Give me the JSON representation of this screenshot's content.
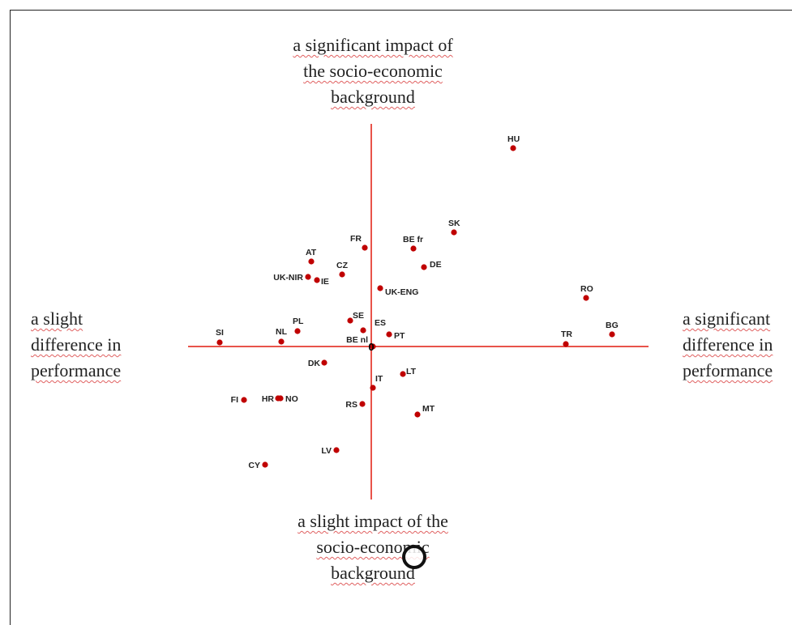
{
  "labels": {
    "top": "a significant impact of\nthe socio-economic\nbackground",
    "bottom": "a slight impact of the\nsocio-economic\nbackground",
    "left": "a slight\ndifference in\nperformance",
    "right": "a significant\ndifference in\nperformance"
  },
  "colors": {
    "axis": "#e8534a",
    "point": "#c00000",
    "text": "#222222"
  },
  "chart_data": {
    "type": "scatter",
    "title": "",
    "xlabel": "",
    "ylabel": "",
    "xlim": [
      -190,
      345
    ],
    "ylim": [
      -190,
      275
    ],
    "origin_label": "0",
    "grid": false,
    "points": [
      {
        "label": "HU",
        "x": 175,
        "y": 245
      },
      {
        "label": "SK",
        "x": 102,
        "y": 141
      },
      {
        "label": "BE fr",
        "x": 52,
        "y": 121
      },
      {
        "label": "FR",
        "x": -8,
        "y": 122
      },
      {
        "label": "DE",
        "x": 65,
        "y": 98
      },
      {
        "label": "AT",
        "x": -74,
        "y": 105
      },
      {
        "label": "CZ",
        "x": -36,
        "y": 89
      },
      {
        "label": "UK-NIR",
        "x": -78,
        "y": 86
      },
      {
        "label": "IE",
        "x": -67,
        "y": 82
      },
      {
        "label": "UK-ENG",
        "x": 11,
        "y": 72
      },
      {
        "label": "RO",
        "x": 265,
        "y": 60
      },
      {
        "label": "SE",
        "x": -26,
        "y": 32
      },
      {
        "label": "ES",
        "x": -10,
        "y": 20
      },
      {
        "label": "PL",
        "x": -91,
        "y": 19
      },
      {
        "label": "PT",
        "x": 22,
        "y": 15
      },
      {
        "label": "BE nl",
        "x": 2,
        "y": 0
      },
      {
        "label": "SI",
        "x": -187,
        "y": 5
      },
      {
        "label": "NL",
        "x": -111,
        "y": 6
      },
      {
        "label": "TR",
        "x": 240,
        "y": 3
      },
      {
        "label": "BG",
        "x": 297,
        "y": 15
      },
      {
        "label": "DK",
        "x": -58,
        "y": -20
      },
      {
        "label": "LT",
        "x": 39,
        "y": -34
      },
      {
        "label": "IT",
        "x": 2,
        "y": -51
      },
      {
        "label": "FI",
        "x": -157,
        "y": -66
      },
      {
        "label": "HR",
        "x": -115,
        "y": -64
      },
      {
        "label": "NO",
        "x": -112,
        "y": -64
      },
      {
        "label": "RS",
        "x": -11,
        "y": -71
      },
      {
        "label": "MT",
        "x": 57,
        "y": -84
      },
      {
        "label": "LV",
        "x": -43,
        "y": -128
      },
      {
        "label": "CY",
        "x": -131,
        "y": -146
      }
    ]
  }
}
